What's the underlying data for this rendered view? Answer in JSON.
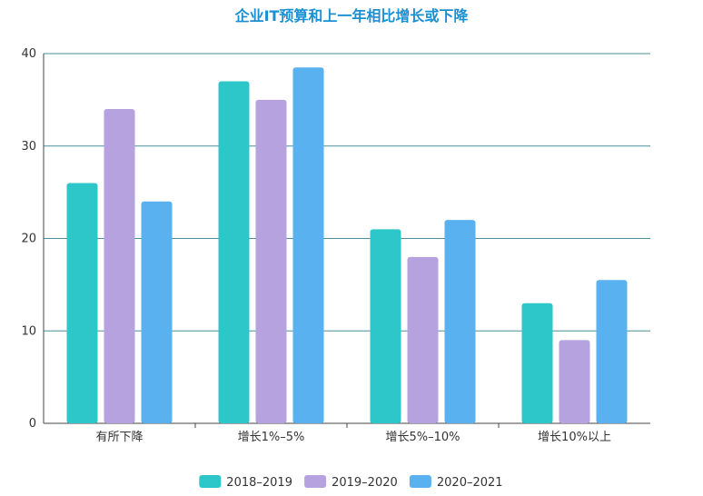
{
  "chart_data": {
    "type": "bar",
    "title": "企业IT预算和上一年相比增长或下降",
    "categories": [
      "有所下降",
      "增长1%–5%",
      "增长5%–10%",
      "增长10%以上"
    ],
    "series": [
      {
        "name": "2018–2019",
        "values": [
          26,
          37,
          21,
          13
        ]
      },
      {
        "name": "2019–2020",
        "values": [
          34,
          35,
          18,
          9
        ]
      },
      {
        "name": "2020–2021",
        "values": [
          24,
          38.5,
          22,
          15.5
        ]
      }
    ],
    "ylim": [
      0,
      40
    ],
    "yticks": [
      0,
      10,
      20,
      30,
      40
    ],
    "xlabel": "",
    "ylabel": "",
    "grid": true,
    "legend_position": "bottom-center"
  },
  "colors": {
    "series": [
      "#2ec7c9",
      "#b6a2de",
      "#5ab1ef"
    ],
    "grid": "#4a8f99",
    "axis": "#444444"
  }
}
